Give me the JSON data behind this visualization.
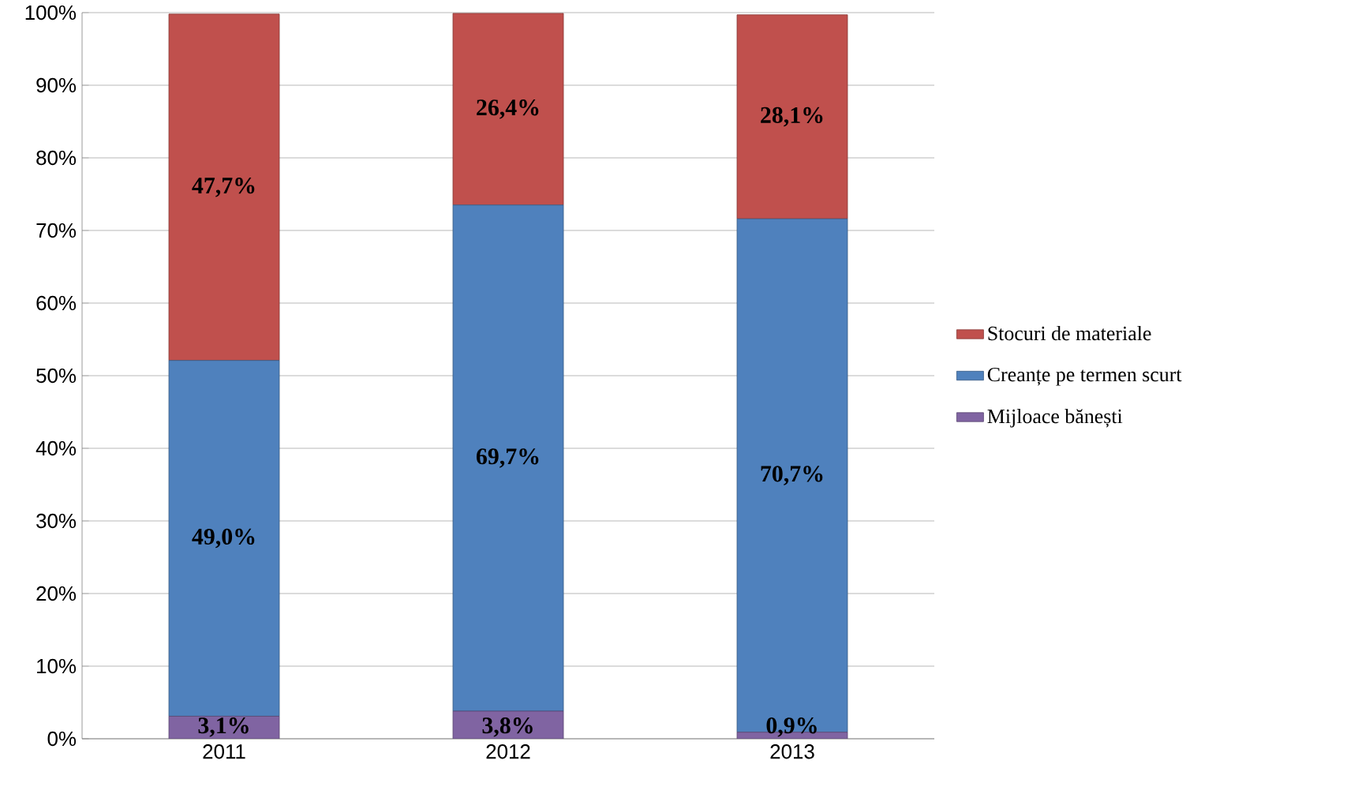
{
  "chart_data": {
    "type": "bar",
    "stacked": true,
    "categories": [
      "2011",
      "2012",
      "2013"
    ],
    "series": [
      {
        "name": "Mijloace bănești",
        "color": "#8064a2",
        "values": [
          3.1,
          3.8,
          0.9
        ],
        "value_labels": [
          "3,1%",
          "3,8%",
          "0,9%"
        ]
      },
      {
        "name": "Creanțe pe termen scurt",
        "color": "#4f81bd",
        "values": [
          49.0,
          69.7,
          70.7
        ],
        "value_labels": [
          "49,0%",
          "69,7%",
          "70,7%"
        ]
      },
      {
        "name": "Stocuri de materiale",
        "color": "#c0504d",
        "values": [
          47.7,
          26.4,
          28.1
        ],
        "value_labels": [
          "47,7%",
          "26,4%",
          "28,1%"
        ]
      }
    ],
    "ylim": [
      0,
      100
    ],
    "yticks": [
      {
        "value": 0,
        "label": "0%"
      },
      {
        "value": 10,
        "label": "10%"
      },
      {
        "value": 20,
        "label": "20%"
      },
      {
        "value": 30,
        "label": "30%"
      },
      {
        "value": 40,
        "label": "40%"
      },
      {
        "value": 50,
        "label": "50%"
      },
      {
        "value": 60,
        "label": "60%"
      },
      {
        "value": 70,
        "label": "70%"
      },
      {
        "value": 80,
        "label": "80%"
      },
      {
        "value": 90,
        "label": "90%"
      },
      {
        "value": 100,
        "label": "100%"
      }
    ],
    "grid": "y",
    "legend": "right"
  }
}
